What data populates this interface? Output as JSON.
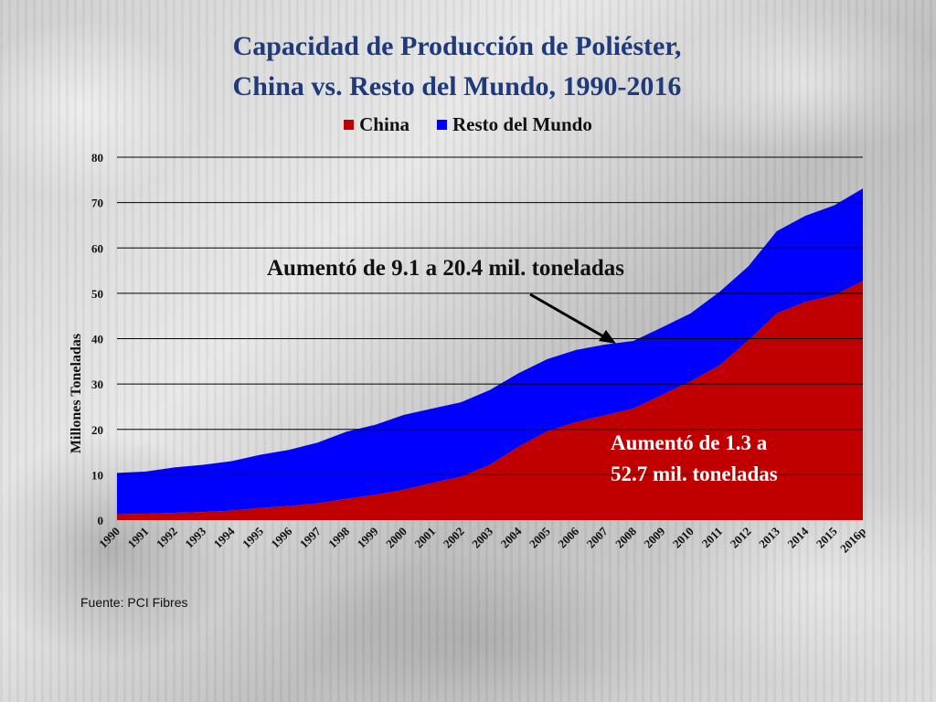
{
  "colors": {
    "china": "#c00000",
    "rest": "#0000ff",
    "title": "#1f3a7a",
    "gridline": "#000000"
  },
  "title_line_1": "Capacidad de Producción de Poliéster,",
  "title_line_2": "China vs. Resto del Mundo, 1990-2016",
  "annotations": {
    "rest": "Aumentó de 9.1 a 20.4 mil. toneladas",
    "china_line_1": "Aumentó de 1.3 a",
    "china_line_2": "52.7 mil. toneladas"
  },
  "source": "Fuente: PCI Fibres",
  "chart_data": {
    "type": "area",
    "stacked": true,
    "title": "Capacidad de Producción de Poliéster, China vs. Resto del Mundo, 1990-2016",
    "xlabel": "",
    "ylabel": "Millones Toneladas",
    "ylim": [
      0,
      80
    ],
    "yticks": [
      0,
      10,
      20,
      30,
      40,
      50,
      60,
      70,
      80
    ],
    "grid": true,
    "legend_position": "top",
    "categories": [
      "1990",
      "1991",
      "1992",
      "1993",
      "1994",
      "1995",
      "1996",
      "1997",
      "1998",
      "1999",
      "2000",
      "2001",
      "2002",
      "2003",
      "2004",
      "2005",
      "2006",
      "2007",
      "2008",
      "2009",
      "2010",
      "2011",
      "2012",
      "2013",
      "2014",
      "2015",
      "2016p"
    ],
    "series": [
      {
        "name": "China",
        "values": [
          1.3,
          1.4,
          1.6,
          1.8,
          2.1,
          2.7,
          3.1,
          3.7,
          4.7,
          5.6,
          6.7,
          8.2,
          9.6,
          12.2,
          16.2,
          19.6,
          21.6,
          23.1,
          24.6,
          27.6,
          30.6,
          34.1,
          39.6,
          45.6,
          48.1,
          49.6,
          52.7
        ]
      },
      {
        "name": "Resto del Mundo",
        "values": [
          9.1,
          9.3,
          10.0,
          10.4,
          10.9,
          11.7,
          12.4,
          13.4,
          14.8,
          15.4,
          16.5,
          16.4,
          16.4,
          16.5,
          16.2,
          15.9,
          15.9,
          15.6,
          14.9,
          14.9,
          15.0,
          16.2,
          16.3,
          18.1,
          19.0,
          19.8,
          20.4
        ]
      }
    ]
  }
}
